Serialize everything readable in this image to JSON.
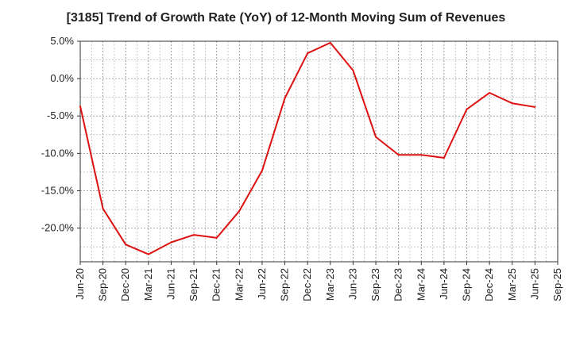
{
  "chart_data": {
    "type": "line",
    "title": "[3185]  Trend of Growth Rate (YoY) of 12-Month Moving Sum of Revenues",
    "xlabel": "",
    "ylabel": "",
    "x_ticks": [
      "Jun-20",
      "Sep-20",
      "Dec-20",
      "Mar-21",
      "Jun-21",
      "Sep-21",
      "Dec-21",
      "Mar-22",
      "Jun-22",
      "Sep-22",
      "Dec-22",
      "Mar-23",
      "Jun-23",
      "Sep-23",
      "Dec-23",
      "Mar-24",
      "Jun-24",
      "Sep-24",
      "Dec-24",
      "Mar-25",
      "Jun-25",
      "Sep-25"
    ],
    "y_ticks": [
      "5.0%",
      "0.0%",
      "-5.0%",
      "-10.0%",
      "-15.0%",
      "-20.0%"
    ],
    "y_tick_values": [
      5,
      0,
      -5,
      -10,
      -15,
      -20
    ],
    "ylim": [
      -24.5,
      5.0
    ],
    "grid": true,
    "line_color": "#dd1111",
    "series": [
      {
        "values": [
          -3.7,
          -17.4,
          -22.2,
          -23.5,
          -21.9,
          -20.9,
          -21.3,
          -17.7,
          -12.3,
          -2.6,
          3.4,
          4.8,
          1.1,
          -7.8,
          -10.2,
          -10.2,
          -10.6,
          -4.1,
          -1.9,
          -3.3,
          -3.8
        ]
      }
    ]
  }
}
